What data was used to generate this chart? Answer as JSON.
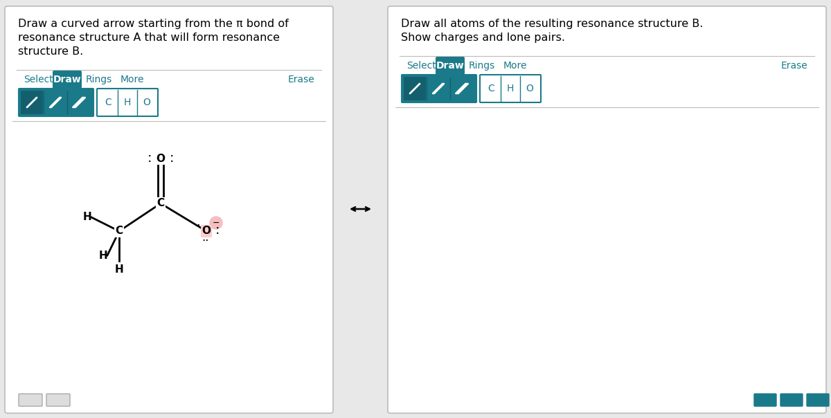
{
  "bg_color": "#e8e8e8",
  "panel_bg": "#ffffff",
  "teal_color": "#1a7a8a",
  "teal_dark": "#145f6e",
  "border_color": "#bbbbbb",
  "text_color": "#000000",
  "teal_text": "#1a7a8a",
  "panel1_title_line1": "Draw a curved arrow starting from the π bond of",
  "panel1_title_line2": "resonance structure A that will form resonance",
  "panel1_title_line3": "structure B.",
  "panel2_title_line1": "Draw all atoms of the resulting resonance structure B.",
  "panel2_title_line2": "Show charges and lone pairs.",
  "atom_buttons": [
    "C",
    "H",
    "O"
  ],
  "double_arrow": "↔"
}
